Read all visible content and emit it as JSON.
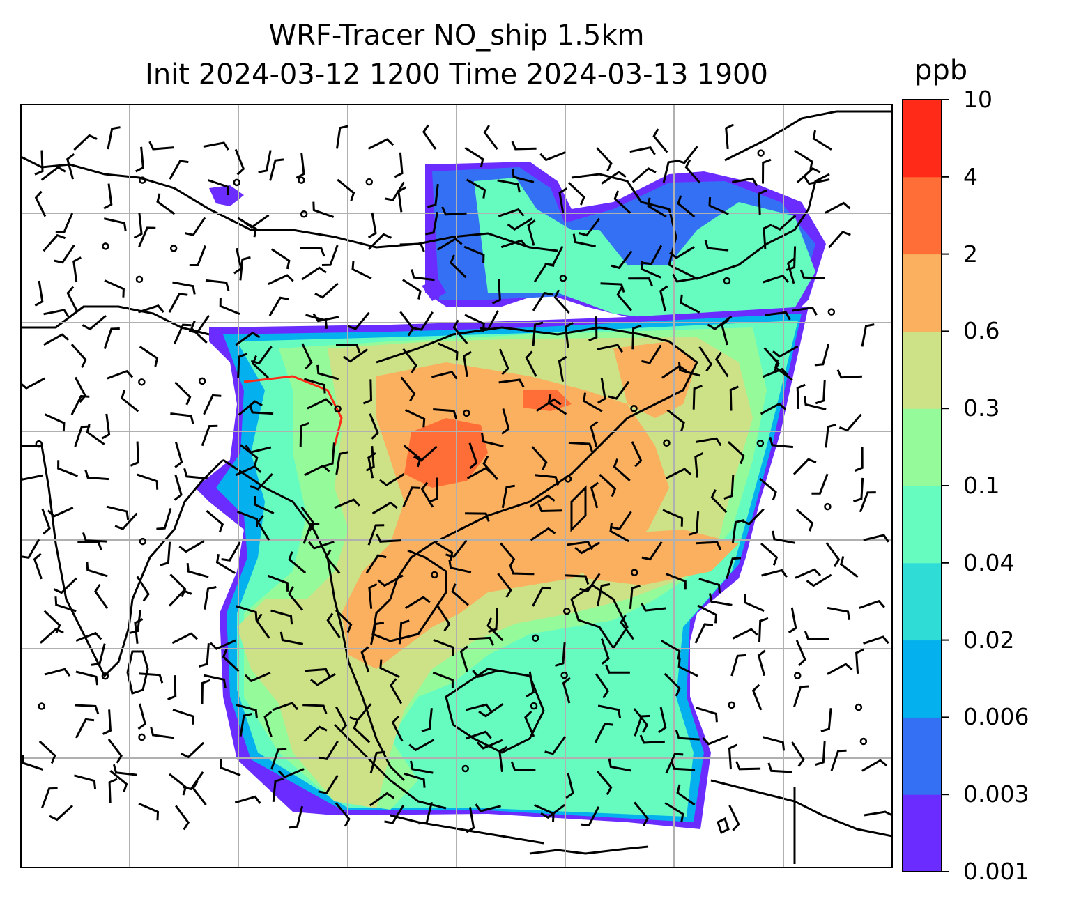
{
  "title": {
    "line1": "WRF-Tracer NO_ship 1.5km",
    "line2": "Init 2024-03-12 1200 Time 2024-03-13 1900"
  },
  "colorbar": {
    "unit": "ppb",
    "levels": [
      "0.001",
      "0.003",
      "0.006",
      "0.02",
      "0.04",
      "0.1",
      "0.3",
      "0.6",
      "2",
      "4",
      "10"
    ],
    "colors": [
      "#6b2cff",
      "#3470f4",
      "#04b0ee",
      "#2fdcd6",
      "#66fcc0",
      "#95fb9a",
      "#cde187",
      "#fbb05f",
      "#ff6e36",
      "#ff2a18"
    ]
  },
  "map": {
    "gridlines": true,
    "coastline_color": "#000000",
    "wind_barbs": true
  }
}
